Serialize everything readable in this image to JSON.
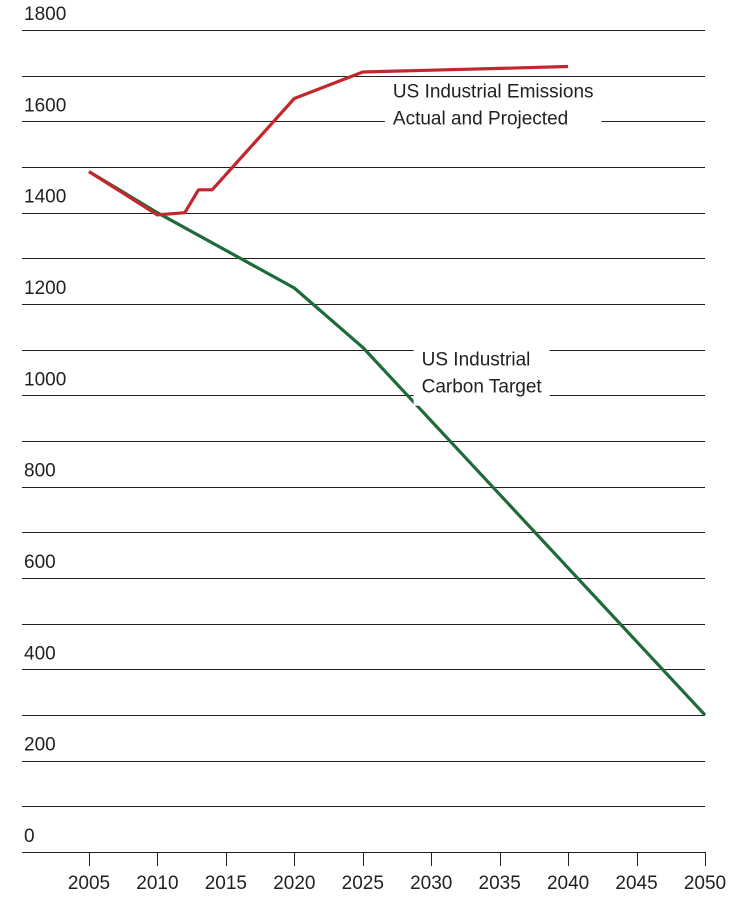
{
  "chart_data": {
    "type": "line",
    "title": "",
    "xlabel": "",
    "ylabel": "",
    "x_ticks": [
      "2005",
      "2010",
      "2015",
      "2020",
      "2025",
      "2030",
      "2035",
      "2040",
      "2045",
      "2050"
    ],
    "y_ticks": [
      "0",
      "200",
      "400",
      "600",
      "800",
      "1000",
      "1200",
      "1400",
      "1600",
      "1800"
    ],
    "xlim": [
      2005,
      2050
    ],
    "ylim": [
      0,
      1800
    ],
    "grid": true,
    "series": [
      {
        "name": "US Industrial Emissions Actual and Projected",
        "color": "#c1272d",
        "points": [
          [
            2005,
            1490
          ],
          [
            2010,
            1395
          ],
          [
            2012,
            1400
          ],
          [
            2013,
            1450
          ],
          [
            2014,
            1450
          ],
          [
            2020,
            1650
          ],
          [
            2025,
            1708
          ],
          [
            2030,
            1712
          ],
          [
            2035,
            1716
          ],
          [
            2040,
            1720
          ]
        ]
      },
      {
        "name": "US Industrial Carbon Target",
        "color": "#1e6b3a",
        "points": [
          [
            2005,
            1490
          ],
          [
            2010,
            1400
          ],
          [
            2020,
            1235
          ],
          [
            2025,
            1105
          ],
          [
            2050,
            300
          ]
        ]
      }
    ],
    "annotations": [
      {
        "lines": [
          "US Industrial Emissions",
          "Actual and Projected"
        ],
        "series": 0,
        "anchor_x": 2027.2,
        "anchor_y": 1652
      },
      {
        "lines": [
          "US Industrial",
          "Carbon Target"
        ],
        "series": 1,
        "anchor_x": 2029.3,
        "anchor_y": 1065
      }
    ]
  }
}
